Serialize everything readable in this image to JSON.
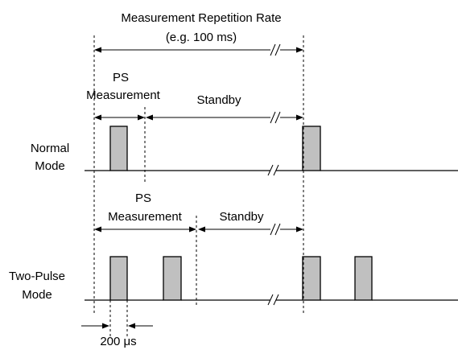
{
  "labels": {
    "rate_title": "Measurement Repetition Rate",
    "rate_subtitle": "(e.g. 100 ms)",
    "normal_ps_line1": "PS",
    "normal_ps_line2": "Measurement",
    "normal_standby": "Standby",
    "normal_mode_line1": "Normal",
    "normal_mode_line2": "Mode",
    "twopulse_ps_line1": "PS",
    "twopulse_ps_line2": "Measurement",
    "twopulse_standby": "Standby",
    "twopulse_mode_line1": "Two-Pulse",
    "twopulse_mode_line2": "Mode",
    "pulse_width": "200 μs"
  }
}
